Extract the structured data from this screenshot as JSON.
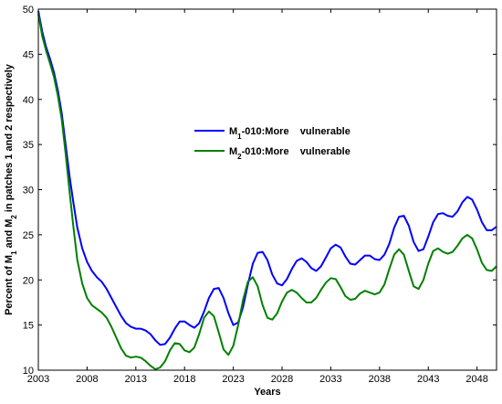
{
  "chart_data": {
    "type": "line",
    "xlabel": "Years",
    "ylabel": {
      "parts": [
        {
          "text": "Percent of M",
          "sub": false
        },
        {
          "text": "1",
          "sub": true
        },
        {
          "text": " and M",
          "sub": false
        },
        {
          "text": "2",
          "sub": true
        },
        {
          "text": " in patches 1 and 2 respectively",
          "sub": false
        }
      ]
    },
    "xlim": [
      2003,
      2050
    ],
    "ylim": [
      10,
      50
    ],
    "xticks": [
      2003,
      2008,
      2013,
      2018,
      2023,
      2028,
      2033,
      2038,
      2043,
      2048
    ],
    "yticks": [
      10,
      15,
      20,
      25,
      30,
      35,
      40,
      45,
      50
    ],
    "grid": false,
    "legend_position": "upper-middle",
    "series": [
      {
        "name_parts": [
          {
            "text": "M",
            "sub": false
          },
          {
            "text": "1",
            "sub": true
          },
          {
            "text": "-010:More    vulnerable",
            "sub": false
          }
        ],
        "color": "#0000ff",
        "x": [
          2003.0,
          2003.4,
          2003.8,
          2004.2,
          2004.6,
          2005.0,
          2005.4,
          2005.8,
          2006.2,
          2006.6,
          2007.0,
          2007.5,
          2008.0,
          2008.5,
          2009.0,
          2009.5,
          2010.0,
          2010.5,
          2011.0,
          2011.5,
          2012.0,
          2012.5,
          2013.0,
          2013.5,
          2014.0,
          2014.5,
          2015.0,
          2015.5,
          2016.0,
          2016.5,
          2017.0,
          2017.5,
          2018.0,
          2018.5,
          2019.0,
          2019.5,
          2020.0,
          2020.5,
          2021.0,
          2021.5,
          2022.0,
          2022.5,
          2023.0,
          2023.5,
          2024.0,
          2024.5,
          2025.0,
          2025.5,
          2026.0,
          2026.5,
          2027.0,
          2027.5,
          2028.0,
          2028.5,
          2029.0,
          2029.5,
          2030.0,
          2030.5,
          2031.0,
          2031.5,
          2032.0,
          2032.5,
          2033.0,
          2033.5,
          2034.0,
          2034.5,
          2035.0,
          2035.5,
          2036.0,
          2036.5,
          2037.0,
          2037.5,
          2038.0,
          2038.5,
          2039.0,
          2039.5,
          2040.0,
          2040.5,
          2041.0,
          2041.5,
          2042.0,
          2042.5,
          2043.0,
          2043.5,
          2044.0,
          2044.5,
          2045.0,
          2045.5,
          2046.0,
          2046.5,
          2047.0,
          2047.5,
          2048.0,
          2048.5,
          2049.0,
          2049.5,
          2050.0
        ],
        "y": [
          49.8,
          47.5,
          45.8,
          44.5,
          43.0,
          41.0,
          38.5,
          35.0,
          31.5,
          28.5,
          25.8,
          23.5,
          22.0,
          21.0,
          20.3,
          19.8,
          19.0,
          18.0,
          17.0,
          16.0,
          15.2,
          14.8,
          14.6,
          14.6,
          14.4,
          14.0,
          13.3,
          12.8,
          12.9,
          13.6,
          14.6,
          15.4,
          15.4,
          15.0,
          14.7,
          15.2,
          16.5,
          18.0,
          19.0,
          19.1,
          18.0,
          16.3,
          15.0,
          15.3,
          17.0,
          19.5,
          21.8,
          23.0,
          23.1,
          22.2,
          20.6,
          19.6,
          19.4,
          20.1,
          21.2,
          22.1,
          22.4,
          22.0,
          21.3,
          21.0,
          21.5,
          22.5,
          23.5,
          23.9,
          23.6,
          22.6,
          21.8,
          21.7,
          22.2,
          22.7,
          22.7,
          22.3,
          22.2,
          22.8,
          24.0,
          25.8,
          27.0,
          27.1,
          26.0,
          24.2,
          23.2,
          23.4,
          24.8,
          26.4,
          27.3,
          27.4,
          27.1,
          27.0,
          27.6,
          28.6,
          29.2,
          28.9,
          27.8,
          26.4,
          25.5,
          25.5,
          25.9
        ]
      },
      {
        "name_parts": [
          {
            "text": "M",
            "sub": false
          },
          {
            "text": "2",
            "sub": true
          },
          {
            "text": "-010:More    vulnerable",
            "sub": false
          }
        ],
        "color": "#008000",
        "x": [
          2003.0,
          2003.4,
          2003.8,
          2004.2,
          2004.6,
          2005.0,
          2005.4,
          2005.8,
          2006.2,
          2006.6,
          2007.0,
          2007.5,
          2008.0,
          2008.5,
          2009.0,
          2009.5,
          2010.0,
          2010.5,
          2011.0,
          2011.5,
          2012.0,
          2012.5,
          2013.0,
          2013.5,
          2014.0,
          2014.5,
          2015.0,
          2015.5,
          2016.0,
          2016.5,
          2017.0,
          2017.5,
          2018.0,
          2018.5,
          2019.0,
          2019.5,
          2020.0,
          2020.5,
          2021.0,
          2021.5,
          2022.0,
          2022.5,
          2023.0,
          2023.5,
          2024.0,
          2024.5,
          2025.0,
          2025.5,
          2026.0,
          2026.5,
          2027.0,
          2027.5,
          2028.0,
          2028.5,
          2029.0,
          2029.5,
          2030.0,
          2030.5,
          2031.0,
          2031.5,
          2032.0,
          2032.5,
          2033.0,
          2033.5,
          2034.0,
          2034.5,
          2035.0,
          2035.5,
          2036.0,
          2036.5,
          2037.0,
          2037.5,
          2038.0,
          2038.5,
          2039.0,
          2039.5,
          2040.0,
          2040.5,
          2041.0,
          2041.5,
          2042.0,
          2042.5,
          2043.0,
          2043.5,
          2044.0,
          2044.5,
          2045.0,
          2045.5,
          2046.0,
          2046.5,
          2047.0,
          2047.5,
          2048.0,
          2048.5,
          2049.0,
          2049.5,
          2050.0
        ],
        "y": [
          49.5,
          47.0,
          45.4,
          44.0,
          42.5,
          40.4,
          37.8,
          34.0,
          29.8,
          25.8,
          22.2,
          19.6,
          18.0,
          17.2,
          16.8,
          16.4,
          15.8,
          14.8,
          13.6,
          12.4,
          11.6,
          11.4,
          11.5,
          11.4,
          11.0,
          10.5,
          10.1,
          10.3,
          11.0,
          12.2,
          13.0,
          12.9,
          12.2,
          12.0,
          12.5,
          14.0,
          15.8,
          16.5,
          16.0,
          14.2,
          12.3,
          11.7,
          12.7,
          15.0,
          17.8,
          19.8,
          20.3,
          19.3,
          17.2,
          15.8,
          15.6,
          16.3,
          17.6,
          18.6,
          18.9,
          18.6,
          18.0,
          17.5,
          17.5,
          18.0,
          18.9,
          19.7,
          20.2,
          20.1,
          19.2,
          18.2,
          17.8,
          17.9,
          18.5,
          18.8,
          18.6,
          18.4,
          18.6,
          19.5,
          21.2,
          22.8,
          23.4,
          22.8,
          21.0,
          19.3,
          19.0,
          20.0,
          21.8,
          23.2,
          23.5,
          23.1,
          22.9,
          23.1,
          23.8,
          24.6,
          25.0,
          24.6,
          23.4,
          21.9,
          21.1,
          21.0,
          21.5
        ]
      }
    ]
  }
}
